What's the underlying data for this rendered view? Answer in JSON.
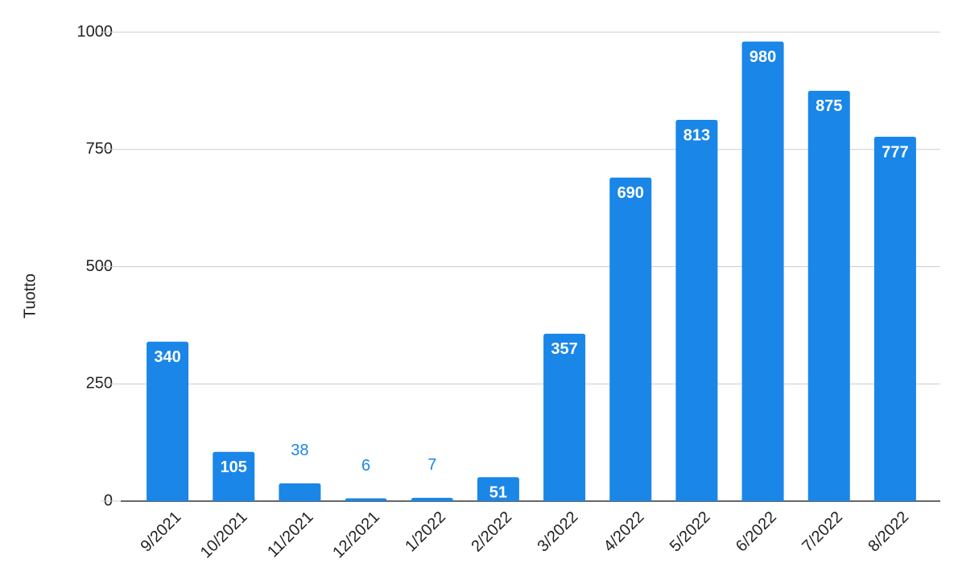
{
  "chart_data": {
    "type": "bar",
    "y_label": "Tuotto",
    "categories": [
      "9/2021",
      "10/2021",
      "11/2021",
      "12/2021",
      "1/2022",
      "2/2022",
      "3/2022",
      "4/2022",
      "5/2022",
      "6/2022",
      "7/2022",
      "8/2022"
    ],
    "values": [
      340,
      105,
      38,
      6,
      7,
      51,
      357,
      690,
      813,
      980,
      875,
      777
    ],
    "color": "#1a86e8",
    "ylim": [
      0,
      1000
    ],
    "yticks": [
      0,
      250,
      500,
      750,
      1000
    ],
    "grid": true
  }
}
